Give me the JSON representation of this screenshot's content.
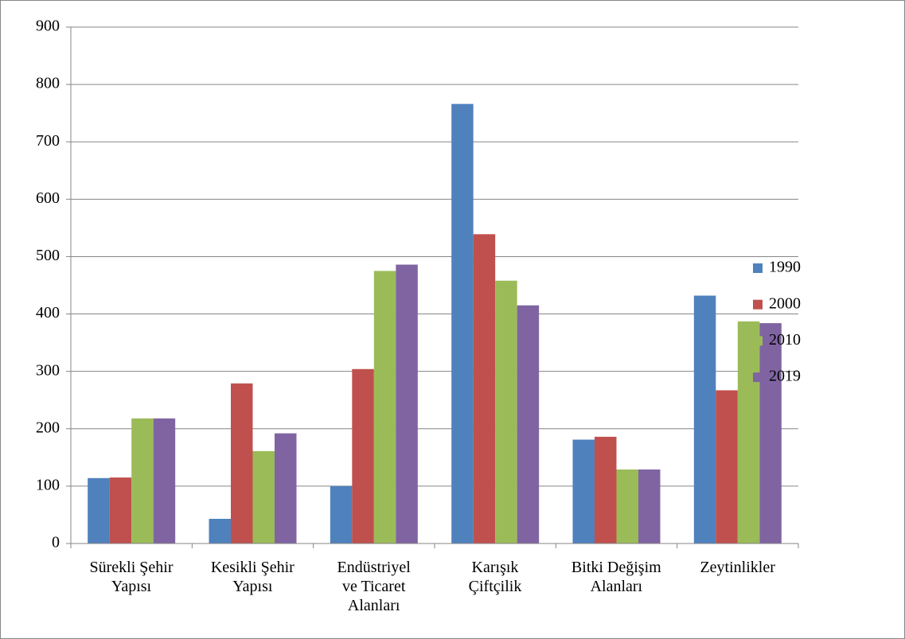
{
  "chart_data": {
    "type": "bar",
    "categories": [
      "Sürekli Şehir\nYapısı",
      "Kesikli Şehir\nYapısı",
      "Endüstriyel\nve Ticaret\nAlanları",
      "Karışık\nÇiftçilik",
      "Bitki Değişim\nAlanları",
      "Zeytinlikler"
    ],
    "series": [
      {
        "name": "1990",
        "color": "#4f81bd",
        "values": [
          114,
          43,
          100,
          766,
          181,
          432
        ]
      },
      {
        "name": "2000",
        "color": "#c0504d",
        "values": [
          115,
          279,
          304,
          539,
          186,
          267
        ]
      },
      {
        "name": "2010",
        "color": "#9bbb59",
        "values": [
          218,
          161,
          475,
          458,
          129,
          387
        ]
      },
      {
        "name": "2019",
        "color": "#8064a2",
        "values": [
          218,
          192,
          486,
          415,
          129,
          384
        ]
      }
    ],
    "ylim": [
      0,
      900
    ],
    "yticks": [
      0,
      100,
      200,
      300,
      400,
      500,
      600,
      700,
      800,
      900
    ],
    "grid": true,
    "legend": "right"
  }
}
